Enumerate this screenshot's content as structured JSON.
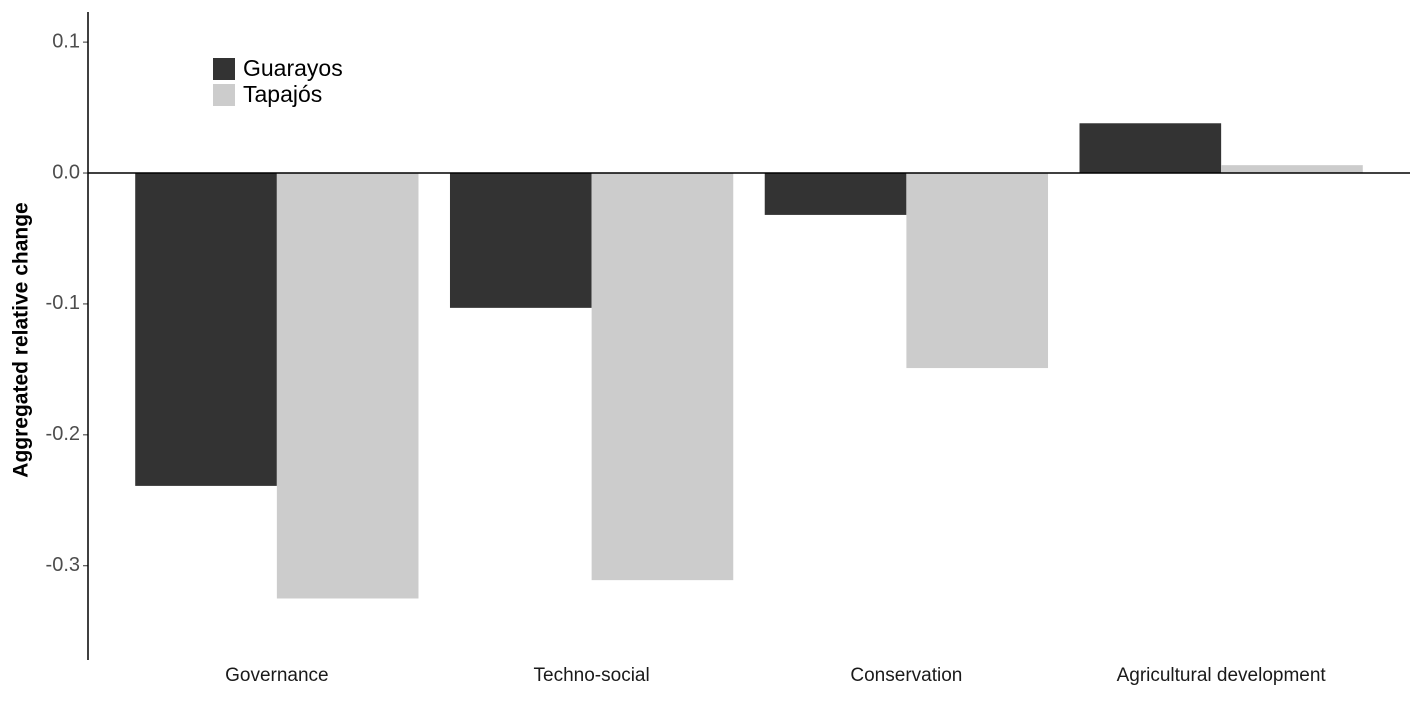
{
  "chart_data": {
    "type": "bar",
    "ylabel": "Aggregated  relative  change",
    "categories": [
      "Governance",
      "Techno-social",
      "Conservation",
      "Agricultural  development"
    ],
    "series": [
      {
        "name": "Guarayos",
        "color": "#333333",
        "values": [
          -0.239,
          -0.103,
          -0.032,
          0.038
        ]
      },
      {
        "name": "Tapajós",
        "color": "#cccccc",
        "values": [
          -0.325,
          -0.311,
          -0.149,
          0.006
        ]
      }
    ],
    "ylim": [
      -0.372,
      0.123
    ],
    "yticks": [
      0.1,
      {
        "value": 0,
        "label": "0.0"
      },
      -0.1,
      -0.2,
      -0.3
    ],
    "grid": false,
    "legend": "top-left"
  }
}
